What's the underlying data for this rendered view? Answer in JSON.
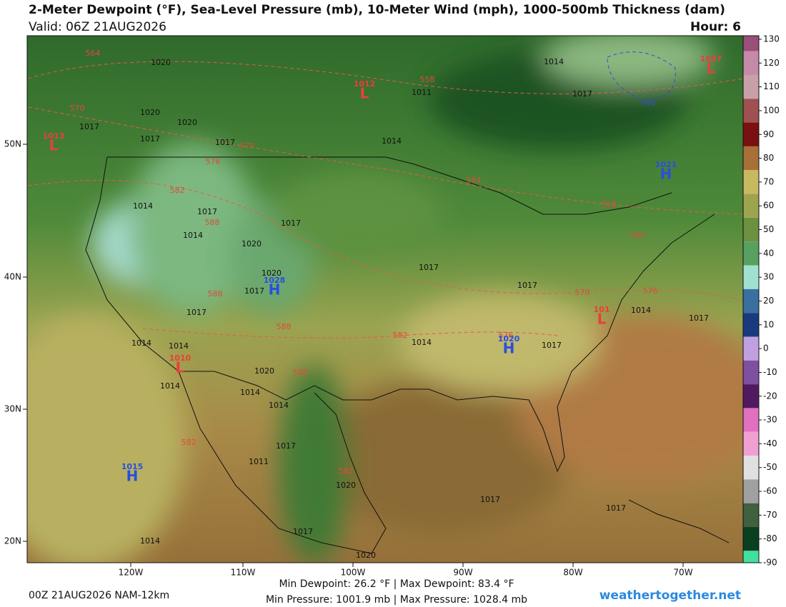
{
  "header": {
    "title": "2-Meter Dewpoint (°F), Sea-Level Pressure (mb), 10-Meter Wind (mph), 1000-500mb Thickness (dam)",
    "valid": "Valid: 06Z 21AUG2026",
    "hour": "Hour: 6"
  },
  "map": {
    "lon_labels": [
      "120W",
      "110W",
      "100W",
      "90W",
      "80W",
      "70W"
    ],
    "lat_labels": [
      "50N",
      "40N",
      "30N",
      "20N"
    ],
    "pressure_centers": [
      {
        "letter": "L",
        "value": "1007",
        "color": "#e8403a"
      },
      {
        "letter": "L",
        "value": "1012",
        "color": "#e8403a"
      },
      {
        "letter": "L",
        "value": "1013",
        "color": "#e8403a"
      },
      {
        "letter": "H",
        "value": "1021",
        "color": "#2a4ee0"
      },
      {
        "letter": "H",
        "value": "1028",
        "color": "#2a4ee0"
      },
      {
        "letter": "L",
        "value": "101",
        "color": "#e8403a"
      },
      {
        "letter": "H",
        "value": "1020",
        "color": "#2a4ee0"
      },
      {
        "letter": "L",
        "value": "1010",
        "color": "#e8403a"
      },
      {
        "letter": "H",
        "value": "1015",
        "color": "#2a4ee0"
      }
    ],
    "isobar_labels": [
      "1020",
      "1014",
      "1017",
      "1011",
      "1020",
      "1017",
      "1020",
      "1017",
      "1017",
      "1014",
      "1014",
      "1017",
      "1014",
      "1017",
      "1020",
      "1020",
      "1017",
      "1017",
      "1017",
      "1017",
      "1014",
      "1017",
      "1014",
      "1014",
      "1017",
      "1014",
      "1020",
      "1014",
      "1014",
      "1014",
      "1017",
      "1011",
      "1020",
      "1017",
      "1017",
      "1014",
      "1017",
      "1020"
    ],
    "thickness_labels": [
      "564",
      "558",
      "570",
      "570",
      "576",
      "564",
      "582",
      "588",
      "558",
      "564",
      "570",
      "576",
      "588",
      "588",
      "576",
      "582",
      "588",
      "582",
      "582",
      "540"
    ]
  },
  "colorbar": {
    "ticks": [
      130,
      120,
      110,
      100,
      90,
      80,
      70,
      60,
      50,
      40,
      30,
      20,
      10,
      0,
      -10,
      -20,
      -30,
      -40,
      -50,
      -60,
      -70,
      -80,
      -90
    ],
    "colors": [
      "#9a4e7a",
      "#c48aa6",
      "#c9a0a8",
      "#a05050",
      "#7a1010",
      "#a87038",
      "#c8b860",
      "#9ea44e",
      "#6a9040",
      "#58a060",
      "#a0e0d0",
      "#3a70a0",
      "#1a3a80",
      "#c0a0e0",
      "#8050a0",
      "#501a60",
      "#e070c0",
      "#f0a0d0",
      "#e0e0e0",
      "#a0a0a0",
      "#406040",
      "#0a4020",
      "#40e0a0"
    ]
  },
  "footer": {
    "run": "00Z 21AUG2026 NAM-12km",
    "dewpoint": "Min Dewpoint:  26.2 °F | Max Dewpoint:  83.4 °F",
    "pressure": "Min Pressure: 1001.9 mb | Max Pressure: 1028.4 mb",
    "site": "weathertogether.net"
  }
}
